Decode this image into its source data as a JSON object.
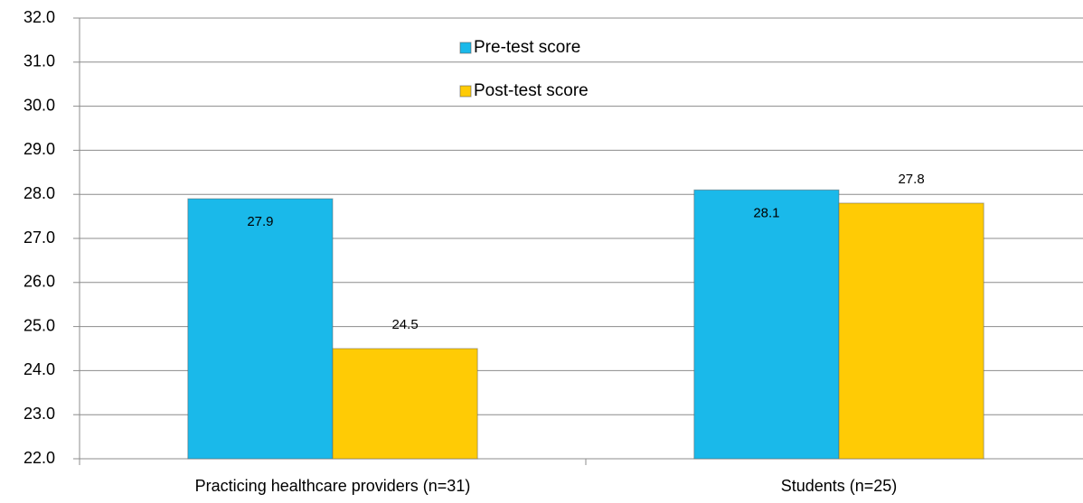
{
  "chart_data": {
    "type": "bar",
    "categories": [
      "Practicing healthcare providers (n=31)",
      "Students (n=25)"
    ],
    "series": [
      {
        "name": "Pre-test score",
        "color": "#1ab9ea",
        "values": [
          27.9,
          28.1
        ]
      },
      {
        "name": "Post-test score",
        "color": "#ffcb05",
        "values": [
          24.5,
          27.8
        ]
      }
    ],
    "ylim": [
      22,
      32
    ],
    "yticks": [
      {
        "value": 22,
        "label": "22.0"
      },
      {
        "value": 23,
        "label": "23.0"
      },
      {
        "value": 24,
        "label": "24.0"
      },
      {
        "value": 25,
        "label": "25.0"
      },
      {
        "value": 26,
        "label": "26.0"
      },
      {
        "value": 27,
        "label": "27.0"
      },
      {
        "value": 28,
        "label": "28.0"
      },
      {
        "value": 29,
        "label": "29.0"
      },
      {
        "value": 30,
        "label": "30.0"
      },
      {
        "value": 31,
        "label": "31.0"
      },
      {
        "value": 32,
        "label": "32.0"
      }
    ],
    "grid": true,
    "legend": "top"
  }
}
